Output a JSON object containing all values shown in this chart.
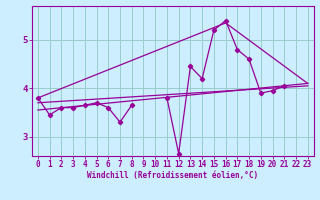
{
  "title": "",
  "xlabel": "Windchill (Refroidissement éolien,°C)",
  "ylabel": "",
  "bg_color": "#cceeff",
  "line_color": "#990099",
  "grid_color": "#99cccc",
  "x_ticks": [
    0,
    1,
    2,
    3,
    4,
    5,
    6,
    7,
    8,
    9,
    10,
    11,
    12,
    13,
    14,
    15,
    16,
    17,
    18,
    19,
    20,
    21,
    22,
    23
  ],
  "y_ticks": [
    3,
    4,
    5
  ],
  "ylim": [
    2.6,
    5.7
  ],
  "xlim": [
    -0.5,
    23.5
  ],
  "series1": {
    "x": [
      0,
      1,
      2,
      3,
      4,
      5,
      6,
      7,
      8,
      9,
      10,
      11,
      12,
      13,
      14,
      15,
      16,
      17,
      18,
      19,
      20,
      21,
      22
    ],
    "y": [
      3.8,
      3.45,
      3.6,
      3.6,
      3.65,
      3.7,
      3.6,
      3.3,
      3.65,
      null,
      null,
      3.8,
      2.65,
      4.45,
      4.2,
      5.2,
      5.4,
      4.8,
      4.6,
      3.9,
      3.95,
      4.05,
      null
    ]
  },
  "line_lower": {
    "x": [
      0,
      23
    ],
    "y": [
      3.55,
      4.1
    ]
  },
  "line_upper": {
    "x": [
      0,
      16,
      23
    ],
    "y": [
      3.8,
      5.35,
      4.1
    ]
  },
  "line_mid": {
    "x": [
      0,
      23
    ],
    "y": [
      3.7,
      4.05
    ]
  }
}
